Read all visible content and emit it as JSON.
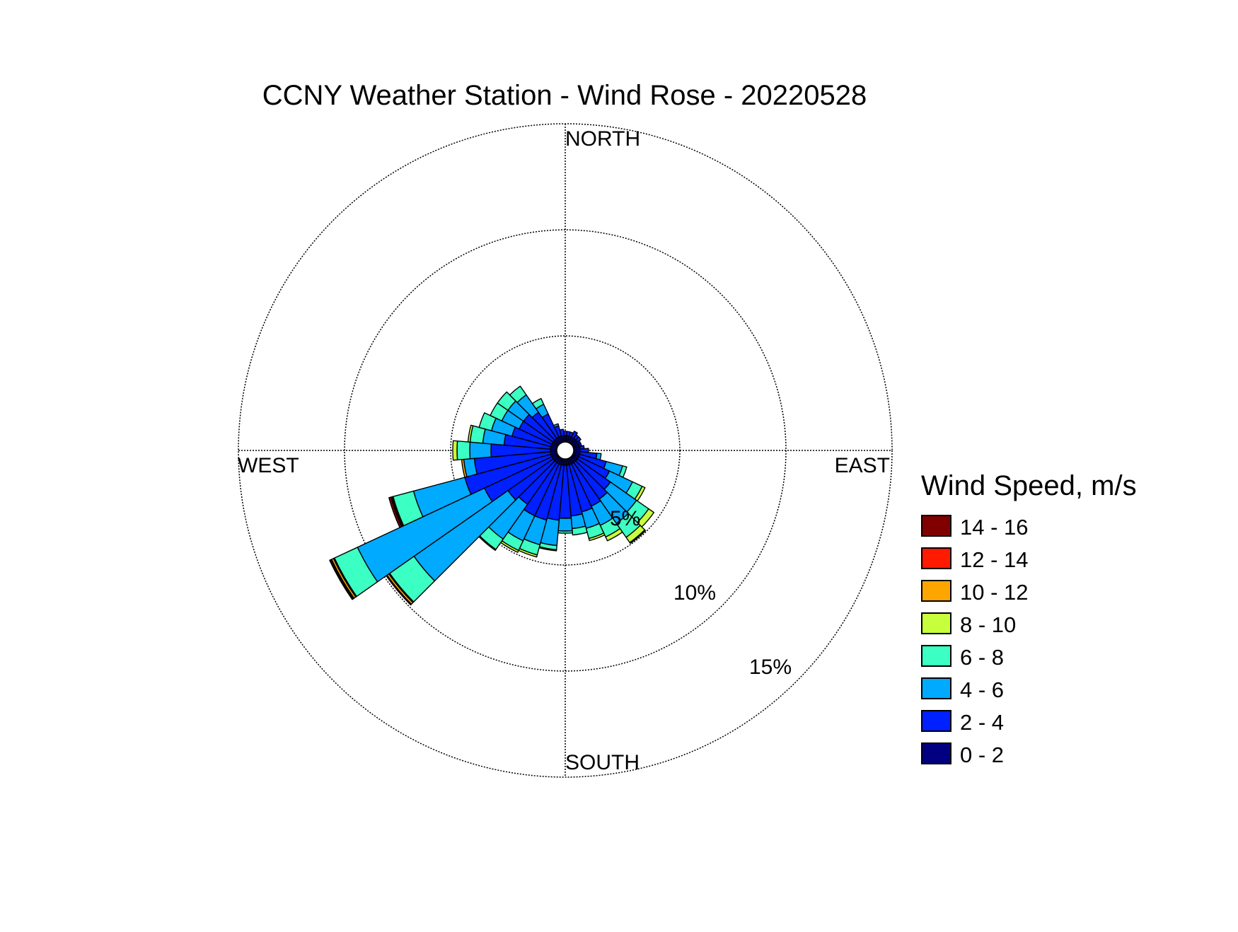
{
  "chart_data": {
    "type": "wind-rose",
    "title": "CCNY Weather Station - Wind Rose - 20220528",
    "direction_labels": {
      "north": "NORTH",
      "east": "EAST",
      "south": "SOUTH",
      "west": "WEST"
    },
    "radial_ticks": [
      {
        "value": 5,
        "label": "5%"
      },
      {
        "value": 10,
        "label": "10%"
      },
      {
        "value": 15,
        "label": "15%"
      }
    ],
    "rlim": [
      0,
      15
    ],
    "legend": {
      "title": "Wind Speed, m/s",
      "position": "right",
      "items": [
        {
          "label": "14 - 16",
          "color": "#800000"
        },
        {
          "label": "12 - 14",
          "color": "#ff1a00"
        },
        {
          "label": "10 - 12",
          "color": "#ffa500"
        },
        {
          "label": "8 - 10",
          "color": "#c8ff3c"
        },
        {
          "label": "6 - 8",
          "color": "#3cffc3"
        },
        {
          "label": "4 - 6",
          "color": "#00aaff"
        },
        {
          "label": "2 - 4",
          "color": "#0020ff"
        },
        {
          "label": "0 - 2",
          "color": "#000080"
        }
      ]
    },
    "speed_bins": [
      "0 - 2",
      "2 - 4",
      "4 - 6",
      "6 - 8",
      "8 - 10",
      "10 - 12",
      "12 - 14",
      "14 - 16"
    ],
    "sector_width_deg": 10,
    "direction_unit": "degrees clockwise from north",
    "frequency_unit": "%",
    "sectors": [
      {
        "dir": 0,
        "freq": [
          0.3,
          0.2,
          0,
          0,
          0,
          0,
          0,
          0
        ]
      },
      {
        "dir": 10,
        "freq": [
          0.3,
          0.2,
          0,
          0,
          0,
          0,
          0,
          0
        ]
      },
      {
        "dir": 20,
        "freq": [
          0.3,
          0.2,
          0,
          0,
          0,
          0,
          0,
          0
        ]
      },
      {
        "dir": 30,
        "freq": [
          0.3,
          0.3,
          0,
          0,
          0,
          0,
          0,
          0
        ]
      },
      {
        "dir": 40,
        "freq": [
          0.3,
          0.2,
          0,
          0,
          0,
          0,
          0,
          0
        ]
      },
      {
        "dir": 50,
        "freq": [
          0.3,
          0.2,
          0,
          0,
          0,
          0,
          0,
          0
        ]
      },
      {
        "dir": 60,
        "freq": [
          0.3,
          0.1,
          0,
          0,
          0,
          0,
          0,
          0
        ]
      },
      {
        "dir": 70,
        "freq": [
          0.3,
          0.1,
          0,
          0,
          0,
          0,
          0,
          0
        ]
      },
      {
        "dir": 80,
        "freq": [
          0.3,
          0.2,
          0,
          0,
          0,
          0,
          0,
          0
        ]
      },
      {
        "dir": 90,
        "freq": [
          0.3,
          0.4,
          0,
          0,
          0,
          0,
          0,
          0
        ]
      },
      {
        "dir": 100,
        "freq": [
          0.3,
          0.8,
          0.2,
          0,
          0,
          0,
          0,
          0
        ]
      },
      {
        "dir": 110,
        "freq": [
          0.3,
          1.3,
          0.8,
          0.2,
          0,
          0,
          0,
          0
        ]
      },
      {
        "dir": 120,
        "freq": [
          0.3,
          1.6,
          1.2,
          0.5,
          0.15,
          0,
          0,
          0
        ]
      },
      {
        "dir": 130,
        "freq": [
          0.3,
          1.9,
          1.5,
          0.7,
          0.3,
          0,
          0,
          0
        ]
      },
      {
        "dir": 140,
        "freq": [
          0.3,
          2.1,
          1.4,
          0.8,
          0.3,
          0.05,
          0,
          0
        ]
      },
      {
        "dir": 150,
        "freq": [
          0.3,
          2.2,
          1.0,
          0.6,
          0.2,
          0,
          0,
          0
        ]
      },
      {
        "dir": 160,
        "freq": [
          0.3,
          2.3,
          0.8,
          0.5,
          0.1,
          0,
          0,
          0
        ]
      },
      {
        "dir": 170,
        "freq": [
          0.3,
          2.4,
          0.6,
          0.3,
          0,
          0,
          0,
          0
        ]
      },
      {
        "dir": 180,
        "freq": [
          0.3,
          2.5,
          0.6,
          0.1,
          0,
          0,
          0,
          0
        ]
      },
      {
        "dir": 190,
        "freq": [
          0.3,
          2.6,
          1.2,
          0.2,
          0.05,
          0,
          0,
          0
        ]
      },
      {
        "dir": 200,
        "freq": [
          0.3,
          2.7,
          1.2,
          0.5,
          0.1,
          0,
          0,
          0
        ]
      },
      {
        "dir": 210,
        "freq": [
          0.3,
          2.7,
          1.3,
          0.5,
          0.1,
          0,
          0,
          0
        ]
      },
      {
        "dir": 220,
        "freq": [
          0.3,
          2.4,
          2.0,
          0.6,
          0.05,
          0,
          0,
          0
        ]
      },
      {
        "dir": 230,
        "freq": [
          0.3,
          2.6,
          5.4,
          1.4,
          0.05,
          0.1,
          0.05,
          0
        ]
      },
      {
        "dir": 240,
        "freq": [
          0.3,
          3.5,
          6.6,
          1.2,
          0.05,
          0.1,
          0.05,
          0.05
        ]
      },
      {
        "dir": 250,
        "freq": [
          0.3,
          4.2,
          2.5,
          1.0,
          0.05,
          0,
          0.05,
          0.1
        ]
      },
      {
        "dir": 260,
        "freq": [
          0.3,
          3.6,
          0.5,
          0,
          0,
          0.1,
          0,
          0
        ]
      },
      {
        "dir": 270,
        "freq": [
          0.3,
          2.8,
          1.0,
          0.6,
          0.2,
          0,
          0,
          0
        ]
      },
      {
        "dir": 280,
        "freq": [
          0.3,
          2.2,
          1.0,
          0.6,
          0.1,
          0,
          0,
          0
        ]
      },
      {
        "dir": 290,
        "freq": [
          0.3,
          1.9,
          1.0,
          0.6,
          0,
          0,
          0,
          0
        ]
      },
      {
        "dir": 300,
        "freq": [
          0.3,
          1.7,
          0.9,
          0.6,
          0,
          0,
          0,
          0
        ]
      },
      {
        "dir": 310,
        "freq": [
          0.3,
          1.7,
          0.9,
          0.6,
          0,
          0,
          0,
          0
        ]
      },
      {
        "dir": 320,
        "freq": [
          0.3,
          1.5,
          1.0,
          0.5,
          0,
          0,
          0,
          0
        ]
      },
      {
        "dir": 330,
        "freq": [
          0.3,
          1.2,
          0.5,
          0.3,
          0,
          0,
          0,
          0
        ]
      },
      {
        "dir": 340,
        "freq": [
          0.3,
          0.5,
          0.1,
          0,
          0,
          0,
          0,
          0
        ]
      },
      {
        "dir": 350,
        "freq": [
          0.3,
          0.3,
          0,
          0,
          0,
          0,
          0,
          0
        ]
      }
    ]
  }
}
